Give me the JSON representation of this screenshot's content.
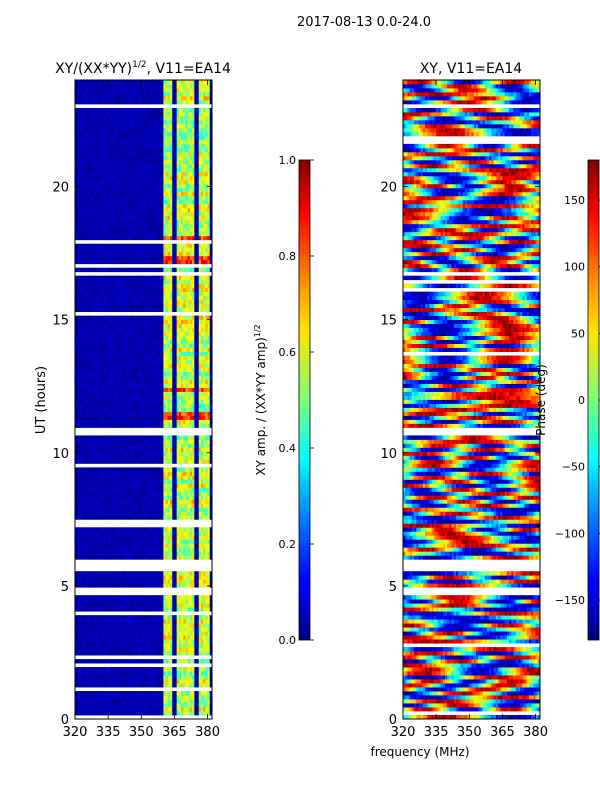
{
  "suptitle": "2017-08-13 0.0-24.0",
  "xlabel_shared": "frequency (MHz)",
  "chart_data": [
    {
      "type": "heatmap",
      "title_main": "XY/(XX*YY)",
      "title_sup": "1/2",
      "title_tail": ", V11=EA14",
      "xlabel": "",
      "ylabel": "UT (hours)",
      "xlim": [
        320,
        382
      ],
      "ylim": [
        0,
        24
      ],
      "xticks": [
        320,
        335,
        350,
        365,
        380
      ],
      "yticks": [
        0,
        5,
        10,
        15,
        20
      ],
      "colorbar": {
        "label_main": "XY amp. / (XX*YY amp)",
        "label_sup": "1/2",
        "range": [
          0.0,
          1.0
        ],
        "ticks": [
          "0.0",
          "0.2",
          "0.4",
          "0.6",
          "0.8",
          "1.0"
        ],
        "colormap": "jet"
      },
      "bright_bands_mhz": [
        [
          360,
          364
        ],
        [
          366,
          369.5
        ],
        [
          370.5,
          373.5
        ],
        [
          376,
          381
        ]
      ],
      "gap_hours": [
        [
          10.6,
          11.0
        ],
        [
          5.6,
          6.0
        ],
        [
          4.6,
          4.9
        ],
        [
          22.9,
          23.1
        ],
        [
          16.6,
          16.8
        ],
        [
          17.0,
          17.1
        ]
      ],
      "hot_rows_hours": [
        17.2,
        17.3,
        18.1,
        12.4,
        11.4
      ]
    },
    {
      "type": "heatmap",
      "title": "XY, V11=EA14",
      "xlabel": "frequency (MHz)",
      "ylabel": "",
      "xlim": [
        320,
        382
      ],
      "ylim": [
        0,
        24
      ],
      "xticks": [
        320,
        335,
        350,
        365,
        380
      ],
      "yticks": [
        0,
        5,
        10,
        15,
        20
      ],
      "colorbar": {
        "label": "Phase (deg)",
        "range": [
          -180,
          180
        ],
        "ticks": [
          "150",
          "100",
          "50",
          "0",
          "−50",
          "−100",
          "−150"
        ],
        "colormap": "jet"
      },
      "gap_hours": [
        [
          10.6,
          11.0
        ],
        [
          5.6,
          6.0
        ],
        [
          4.6,
          4.9
        ],
        [
          22.9,
          23.1
        ],
        [
          16.6,
          16.8
        ]
      ]
    }
  ]
}
